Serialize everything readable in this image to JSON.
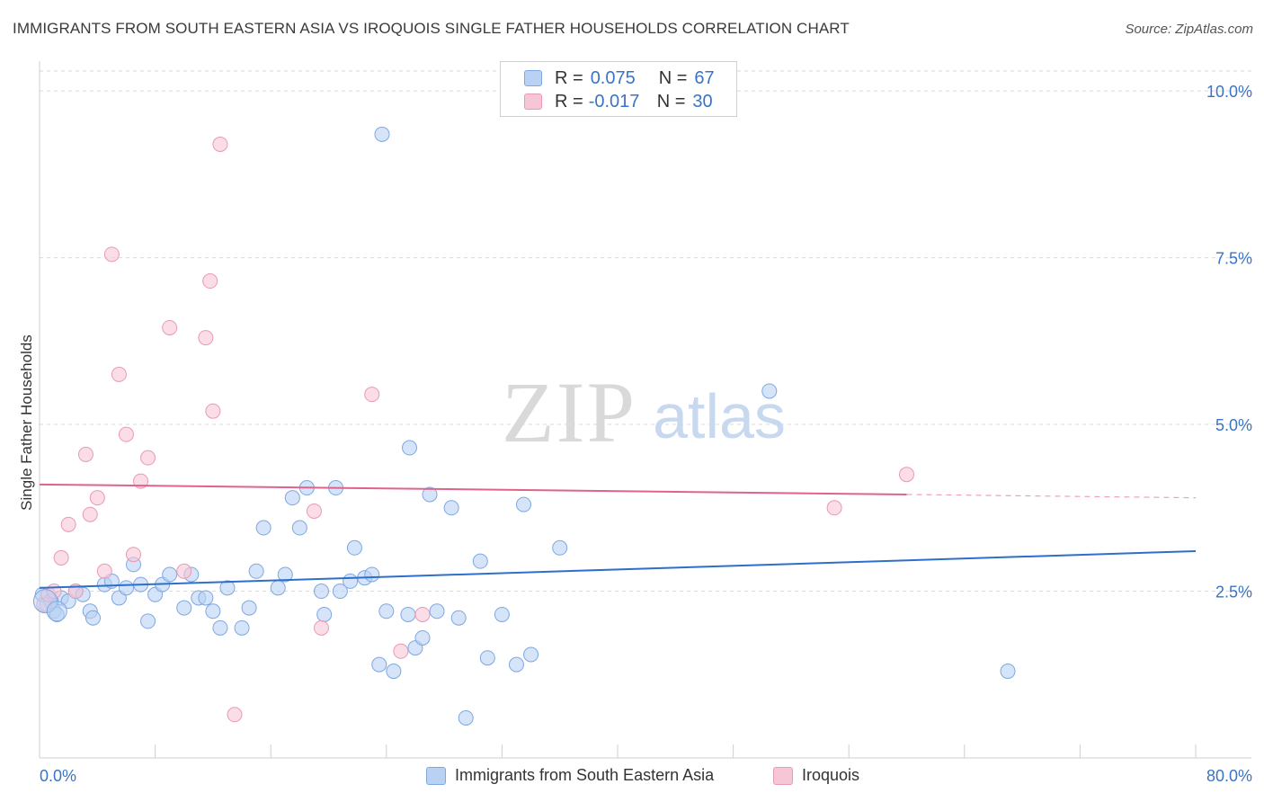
{
  "header": {
    "title": "IMMIGRANTS FROM SOUTH EASTERN ASIA VS IROQUOIS SINGLE FATHER HOUSEHOLDS CORRELATION CHART",
    "source": "Source: ZipAtlas.com"
  },
  "watermark": {
    "zip": "ZIP",
    "atlas": "atlas"
  },
  "legend": {
    "rows": [
      {
        "r_label": "R =",
        "r_value": "0.075",
        "n_label": "N =",
        "n_value": "67"
      },
      {
        "r_label": "R =",
        "r_value": "-0.017",
        "n_label": "N =",
        "n_value": "30"
      }
    ]
  },
  "colors": {
    "blue_fill": "#b9d2f3",
    "blue_stroke": "#7ea8e0",
    "blue_line": "#2e6fcb",
    "pink_fill": "#f7c6d6",
    "pink_stroke": "#e99ab3",
    "pink_line": "#e0638b",
    "tick_blue": "#3a74c6",
    "grid": "#d9d9d9"
  },
  "chart_data": {
    "type": "scatter",
    "title": "IMMIGRANTS FROM SOUTH EASTERN ASIA VS IROQUOIS SINGLE FATHER HOUSEHOLDS CORRELATION CHART",
    "xlabel": "",
    "ylabel": "Single Father Households",
    "xlim": [
      0,
      80
    ],
    "ylim": [
      0,
      10.5
    ],
    "x_tick_labels": [
      "0.0%",
      "80.0%"
    ],
    "y_ticks": [
      2.5,
      5.0,
      7.5,
      10.0
    ],
    "y_tick_labels": [
      "2.5%",
      "5.0%",
      "7.5%",
      "10.0%"
    ],
    "series": [
      {
        "name": "Immigrants from South Eastern Asia",
        "color": "blue",
        "trend": {
          "x0": 0,
          "y0": 2.55,
          "x1": 80,
          "y1": 3.1
        },
        "points": [
          [
            0.2,
            2.45
          ],
          [
            0.5,
            2.3
          ],
          [
            1.0,
            2.2
          ],
          [
            1.5,
            2.4
          ],
          [
            2.0,
            2.35
          ],
          [
            2.5,
            2.5
          ],
          [
            3.0,
            2.45
          ],
          [
            3.5,
            2.2
          ],
          [
            3.7,
            2.1
          ],
          [
            4.5,
            2.6
          ],
          [
            5.0,
            2.65
          ],
          [
            5.5,
            2.4
          ],
          [
            6.0,
            2.55
          ],
          [
            6.5,
            2.9
          ],
          [
            7.0,
            2.6
          ],
          [
            7.5,
            2.05
          ],
          [
            8.0,
            2.45
          ],
          [
            8.5,
            2.6
          ],
          [
            9.0,
            2.75
          ],
          [
            10.0,
            2.25
          ],
          [
            10.5,
            2.75
          ],
          [
            11.0,
            2.4
          ],
          [
            11.5,
            2.4
          ],
          [
            12.0,
            2.2
          ],
          [
            12.5,
            1.95
          ],
          [
            13.0,
            2.55
          ],
          [
            14.0,
            1.95
          ],
          [
            14.5,
            2.25
          ],
          [
            15.0,
            2.8
          ],
          [
            15.5,
            3.45
          ],
          [
            16.5,
            2.55
          ],
          [
            17.0,
            2.75
          ],
          [
            17.5,
            3.9
          ],
          [
            18.0,
            3.45
          ],
          [
            18.5,
            4.05
          ],
          [
            19.5,
            2.5
          ],
          [
            19.7,
            2.15
          ],
          [
            20.5,
            4.05
          ],
          [
            20.8,
            2.5
          ],
          [
            21.5,
            2.65
          ],
          [
            21.8,
            3.15
          ],
          [
            22.5,
            2.7
          ],
          [
            23.0,
            2.75
          ],
          [
            23.5,
            1.4
          ],
          [
            24.0,
            2.2
          ],
          [
            24.5,
            1.3
          ],
          [
            25.5,
            2.15
          ],
          [
            25.6,
            4.65
          ],
          [
            26.0,
            1.65
          ],
          [
            26.5,
            1.8
          ],
          [
            27.0,
            3.95
          ],
          [
            27.5,
            2.2
          ],
          [
            28.5,
            3.75
          ],
          [
            29.0,
            2.1
          ],
          [
            29.5,
            0.6
          ],
          [
            30.5,
            2.95
          ],
          [
            31.0,
            1.5
          ],
          [
            32.0,
            2.15
          ],
          [
            33.0,
            1.4
          ],
          [
            33.5,
            3.8
          ],
          [
            34.0,
            1.55
          ],
          [
            36.0,
            3.15
          ],
          [
            50.5,
            5.5
          ],
          [
            67.0,
            1.3
          ],
          [
            0.8,
            2.35
          ],
          [
            1.2,
            2.15
          ],
          [
            23.7,
            9.35
          ]
        ]
      },
      {
        "name": "Iroquois",
        "color": "pink",
        "trend": {
          "x0": 0,
          "y0": 4.1,
          "x1": 60,
          "y1": 3.95,
          "dash_to_x": 80,
          "dash_to_y": 3.9
        },
        "points": [
          [
            0.3,
            2.3
          ],
          [
            0.6,
            2.45
          ],
          [
            1.0,
            2.5
          ],
          [
            1.5,
            3.0
          ],
          [
            2.0,
            3.5
          ],
          [
            2.5,
            2.5
          ],
          [
            3.2,
            4.55
          ],
          [
            3.5,
            3.65
          ],
          [
            4.0,
            3.9
          ],
          [
            4.5,
            2.8
          ],
          [
            5.0,
            7.55
          ],
          [
            5.5,
            5.75
          ],
          [
            6.0,
            4.85
          ],
          [
            6.5,
            3.05
          ],
          [
            7.0,
            4.15
          ],
          [
            7.5,
            4.5
          ],
          [
            9.0,
            6.45
          ],
          [
            10.0,
            2.8
          ],
          [
            11.5,
            6.3
          ],
          [
            11.8,
            7.15
          ],
          [
            12.0,
            5.2
          ],
          [
            12.5,
            9.2
          ],
          [
            13.5,
            0.65
          ],
          [
            19.0,
            3.7
          ],
          [
            19.5,
            1.95
          ],
          [
            23.0,
            5.45
          ],
          [
            25.0,
            1.6
          ],
          [
            26.5,
            2.15
          ],
          [
            55.0,
            3.75
          ],
          [
            60.0,
            4.25
          ]
        ]
      }
    ],
    "legend": [
      "Immigrants from South Eastern Asia",
      "Iroquois"
    ]
  }
}
